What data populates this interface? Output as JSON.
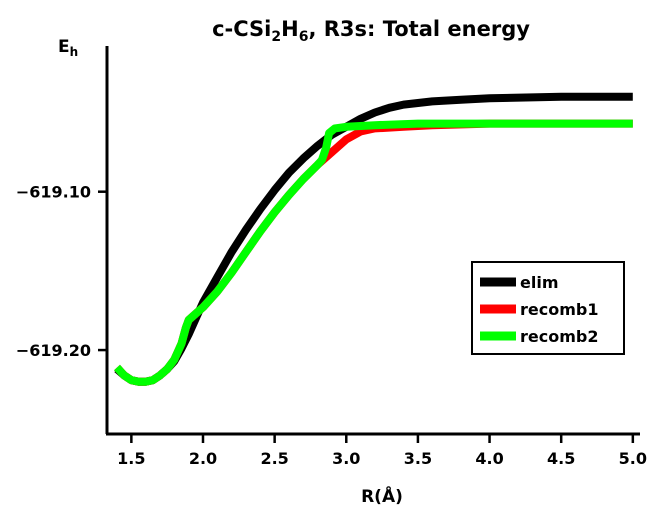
{
  "chart_data": {
    "type": "line",
    "title": {
      "prefix": "c-CSi",
      "sub1": "2",
      "mid": "H",
      "sub2": "6",
      "suffix": ", R3s: Total energy"
    },
    "xlabel": "R(Å)",
    "ylabel": {
      "main": "E",
      "sub": "h"
    },
    "xlim": [
      1.33,
      5.05
    ],
    "ylim": [
      -619.253,
      -619.008
    ],
    "x_ticks": [
      {
        "value": 1.5,
        "label": "1.5"
      },
      {
        "value": 2.0,
        "label": "2.0"
      },
      {
        "value": 2.5,
        "label": "2.5"
      },
      {
        "value": 3.0,
        "label": "3.0"
      },
      {
        "value": 3.5,
        "label": "3.5"
      },
      {
        "value": 4.0,
        "label": "4.0"
      },
      {
        "value": 4.5,
        "label": "4.5"
      },
      {
        "value": 5.0,
        "label": "5.0"
      }
    ],
    "y_ticks": [
      {
        "value": -619.1,
        "label": "−619.10"
      },
      {
        "value": -619.2,
        "label": "−619.20"
      }
    ],
    "legend_position": "right",
    "series": [
      {
        "name": "elim",
        "color": "#000000",
        "points": [
          [
            1.4,
            -619.212
          ],
          [
            1.45,
            -619.216
          ],
          [
            1.5,
            -619.219
          ],
          [
            1.55,
            -619.22
          ],
          [
            1.6,
            -619.22
          ],
          [
            1.65,
            -619.219
          ],
          [
            1.7,
            -619.216
          ],
          [
            1.75,
            -619.212
          ],
          [
            1.8,
            -619.207
          ],
          [
            1.85,
            -619.199
          ],
          [
            1.9,
            -619.19
          ],
          [
            1.95,
            -619.18
          ],
          [
            2.0,
            -619.17
          ],
          [
            2.1,
            -619.154
          ],
          [
            2.2,
            -619.138
          ],
          [
            2.3,
            -619.124
          ],
          [
            2.4,
            -619.111
          ],
          [
            2.5,
            -619.099
          ],
          [
            2.6,
            -619.088
          ],
          [
            2.7,
            -619.079
          ],
          [
            2.8,
            -619.071
          ],
          [
            2.9,
            -619.064
          ],
          [
            3.0,
            -619.059
          ],
          [
            3.1,
            -619.054
          ],
          [
            3.2,
            -619.05
          ],
          [
            3.3,
            -619.047
          ],
          [
            3.4,
            -619.045
          ],
          [
            3.6,
            -619.043
          ],
          [
            3.8,
            -619.042
          ],
          [
            4.0,
            -619.041
          ],
          [
            4.5,
            -619.04
          ],
          [
            5.0,
            -619.04
          ]
        ]
      },
      {
        "name": "recomb1",
        "color": "#ff0000",
        "points": [
          [
            1.4,
            -619.211
          ],
          [
            1.45,
            -619.216
          ],
          [
            1.5,
            -619.219
          ],
          [
            1.55,
            -619.22
          ],
          [
            1.6,
            -619.22
          ],
          [
            1.65,
            -619.219
          ],
          [
            1.7,
            -619.216
          ],
          [
            1.75,
            -619.212
          ],
          [
            1.8,
            -619.206
          ],
          [
            1.85,
            -619.196
          ],
          [
            1.88,
            -619.186
          ],
          [
            1.9,
            -619.181
          ],
          [
            1.95,
            -619.177
          ],
          [
            2.0,
            -619.173
          ],
          [
            2.1,
            -619.163
          ],
          [
            2.2,
            -619.151
          ],
          [
            2.3,
            -619.138
          ],
          [
            2.4,
            -619.125
          ],
          [
            2.5,
            -619.113
          ],
          [
            2.6,
            -619.102
          ],
          [
            2.7,
            -619.092
          ],
          [
            2.8,
            -619.083
          ],
          [
            2.9,
            -619.075
          ],
          [
            3.0,
            -619.067
          ],
          [
            3.1,
            -619.062
          ],
          [
            3.2,
            -619.06
          ],
          [
            3.4,
            -619.059
          ],
          [
            3.6,
            -619.058
          ],
          [
            4.0,
            -619.057
          ],
          [
            4.5,
            -619.057
          ],
          [
            5.0,
            -619.057
          ]
        ]
      },
      {
        "name": "recomb2",
        "color": "#00ff00",
        "points": [
          [
            1.4,
            -619.211
          ],
          [
            1.45,
            -619.216
          ],
          [
            1.5,
            -619.219
          ],
          [
            1.55,
            -619.22
          ],
          [
            1.6,
            -619.22
          ],
          [
            1.65,
            -619.219
          ],
          [
            1.7,
            -619.216
          ],
          [
            1.75,
            -619.212
          ],
          [
            1.8,
            -619.206
          ],
          [
            1.85,
            -619.196
          ],
          [
            1.88,
            -619.186
          ],
          [
            1.9,
            -619.181
          ],
          [
            1.95,
            -619.177
          ],
          [
            2.0,
            -619.173
          ],
          [
            2.1,
            -619.163
          ],
          [
            2.2,
            -619.151
          ],
          [
            2.3,
            -619.138
          ],
          [
            2.4,
            -619.125
          ],
          [
            2.5,
            -619.113
          ],
          [
            2.6,
            -619.102
          ],
          [
            2.7,
            -619.092
          ],
          [
            2.8,
            -619.083
          ],
          [
            2.83,
            -619.08
          ],
          [
            2.86,
            -619.072
          ],
          [
            2.88,
            -619.063
          ],
          [
            2.92,
            -619.06
          ],
          [
            3.0,
            -619.059
          ],
          [
            3.2,
            -619.058
          ],
          [
            3.5,
            -619.057
          ],
          [
            4.0,
            -619.057
          ],
          [
            4.5,
            -619.057
          ],
          [
            5.0,
            -619.057
          ]
        ]
      }
    ]
  }
}
